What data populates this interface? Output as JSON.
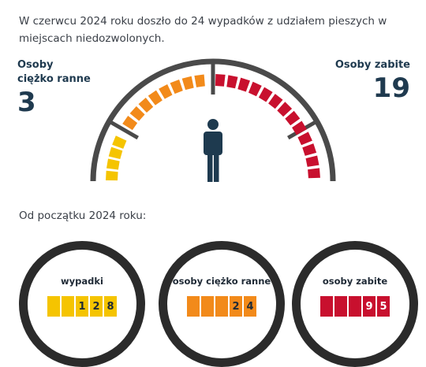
{
  "intro": "W czerwcu 2024 roku doszło do 24 wypadków z udziałem pieszych w miejscach niedozwolonych.",
  "left_stat": {
    "label": "Osoby\nciężko ranne",
    "value": "3"
  },
  "right_stat": {
    "label": "Osoby zabite",
    "value": "19"
  },
  "gauge": {
    "colors": {
      "yellow": "#f5c400",
      "orange": "#f28a1a",
      "red": "#c8102e",
      "frame": "#4a4a4a",
      "person": "#1e3a4f"
    },
    "icon": "person-icon"
  },
  "since_label": "Od początku 2024 roku:",
  "counters": [
    {
      "label": "wypadki",
      "digits": [
        "",
        "",
        "1",
        "2",
        "8"
      ],
      "color": "#f5c400",
      "light_text": false
    },
    {
      "label": "osoby ciężko ranne",
      "digits": [
        "",
        "",
        "",
        "2",
        "4"
      ],
      "color": "#f28a1a",
      "light_text": false
    },
    {
      "label": "osoby zabite",
      "digits": [
        "",
        "",
        "",
        "9",
        "5"
      ],
      "color": "#c8102e",
      "light_text": true
    }
  ]
}
